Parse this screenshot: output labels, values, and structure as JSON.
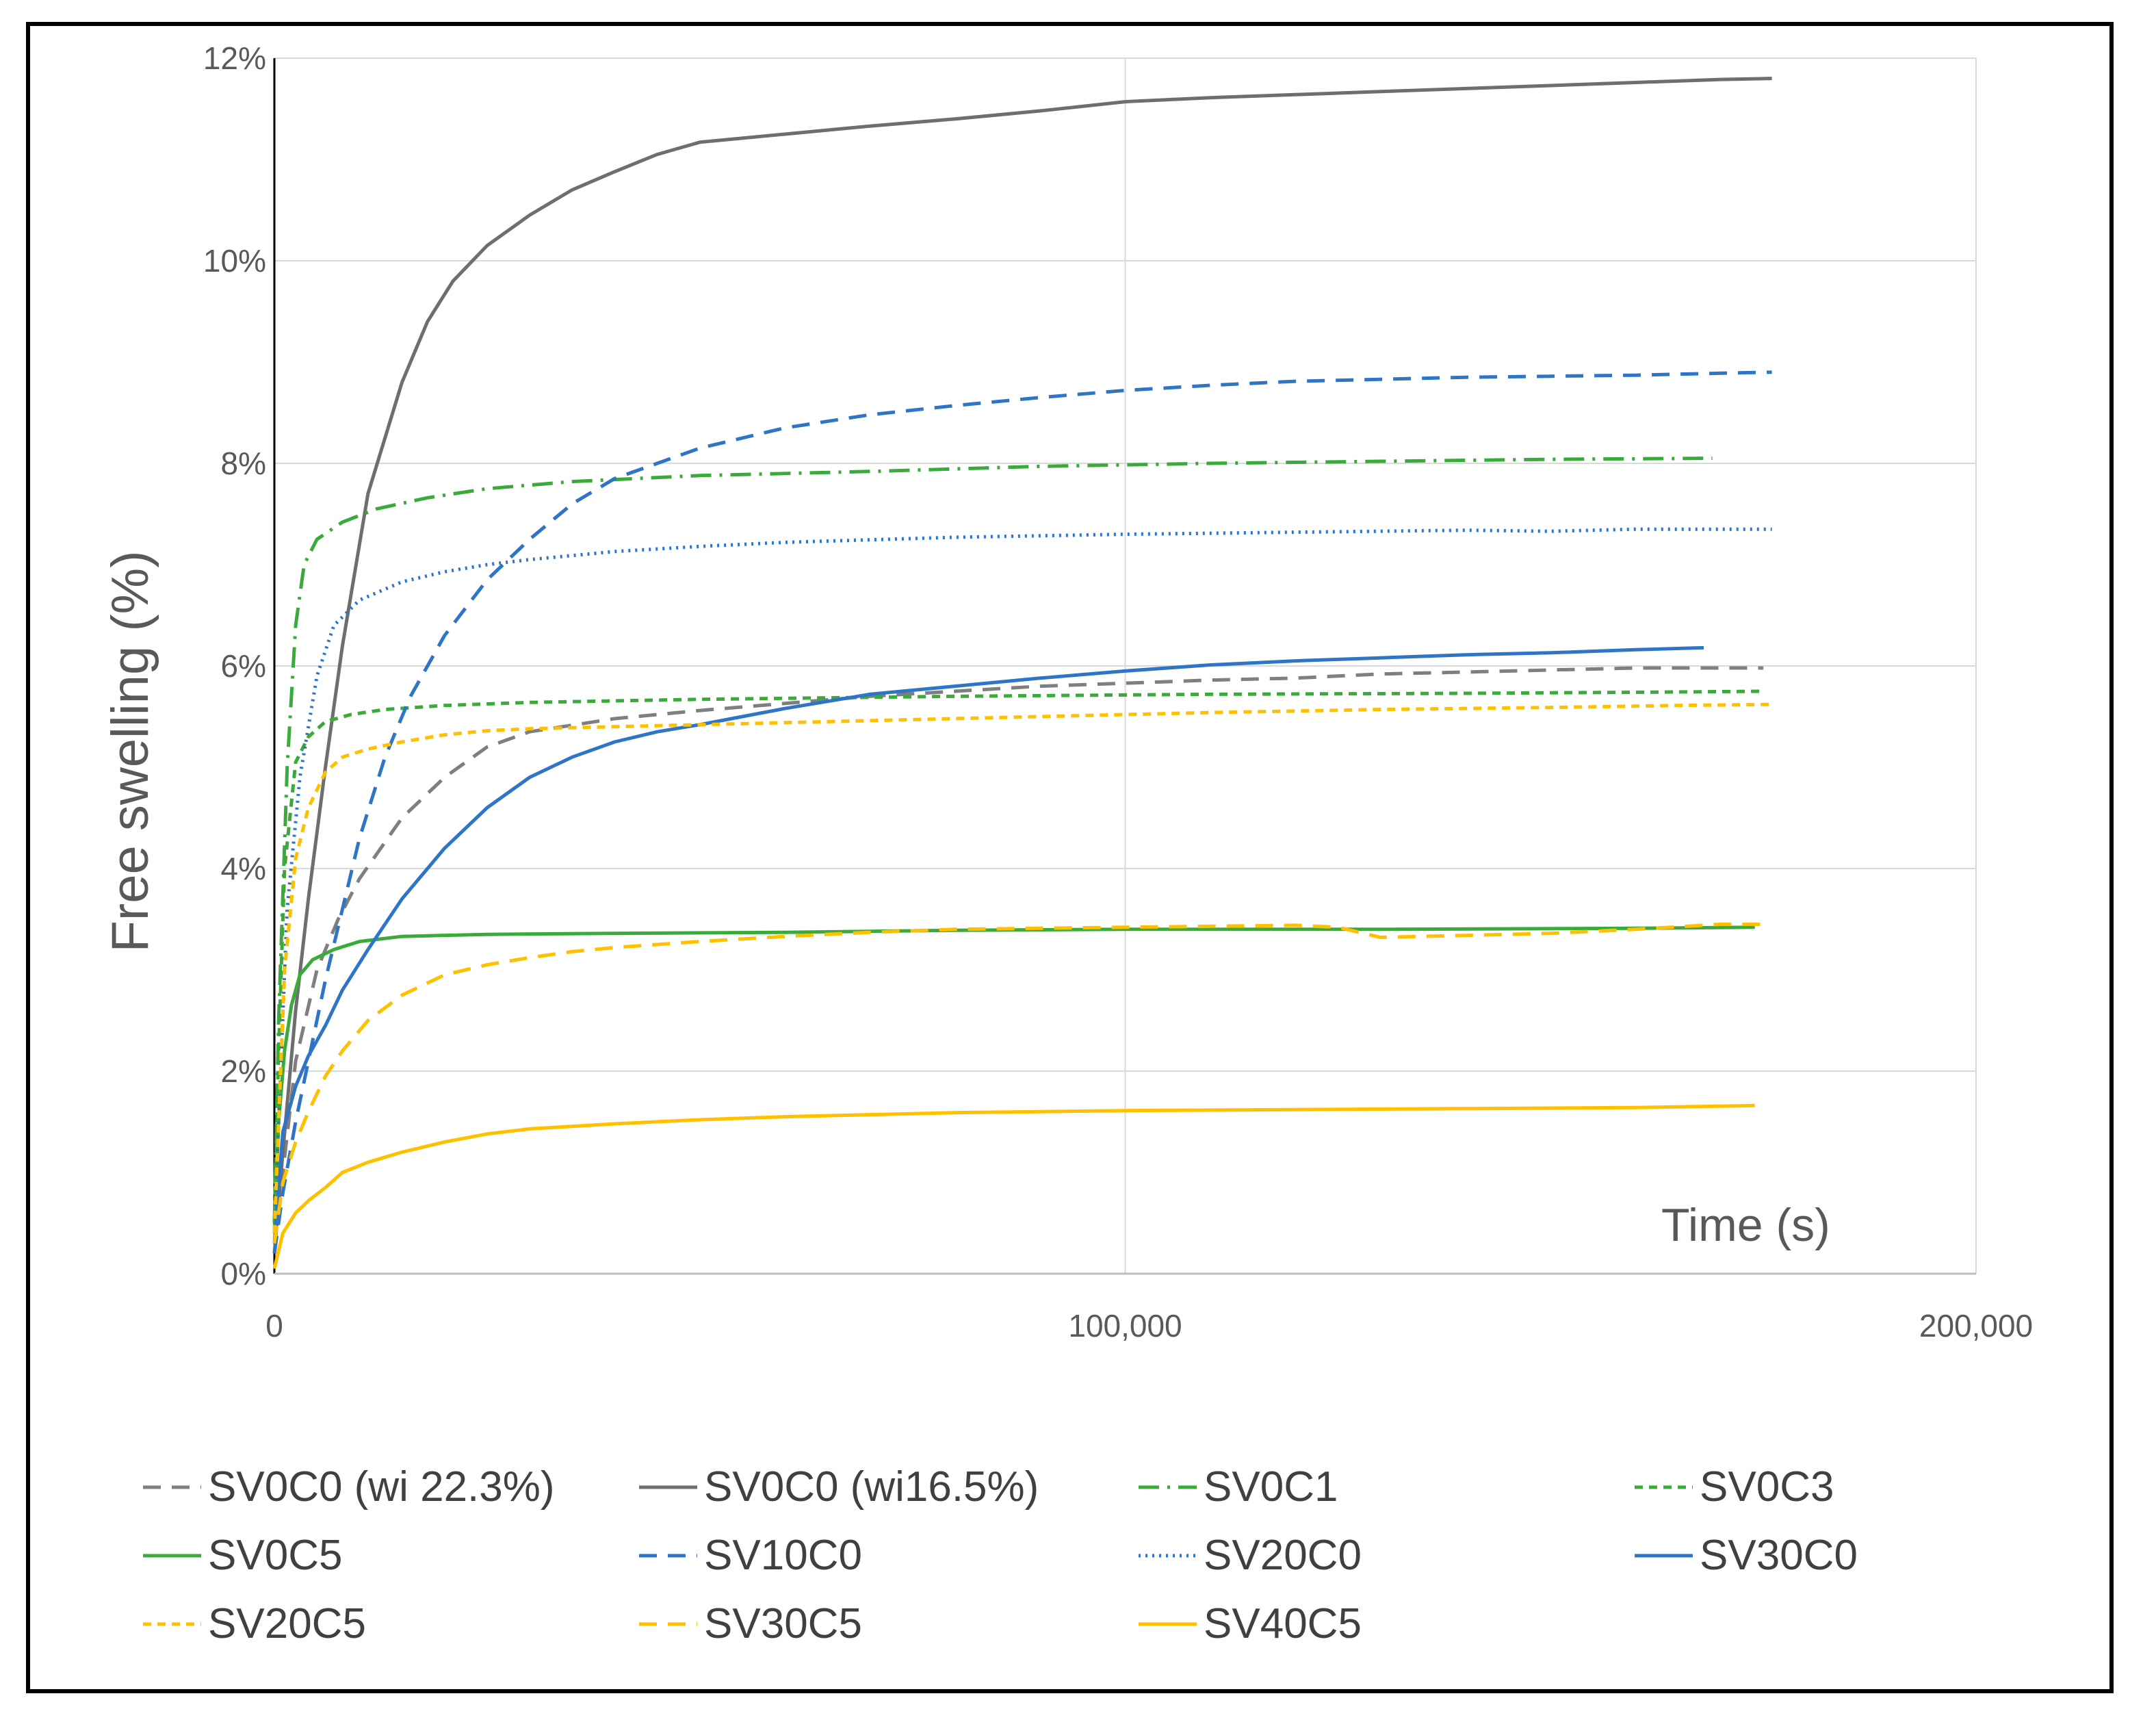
{
  "chart_data": {
    "type": "line",
    "ylabel": "Free swelling (%)",
    "xlabel": "Time (s)",
    "xlim": [
      0,
      200000
    ],
    "ylim": [
      0,
      12
    ],
    "x_ticks": [
      0,
      100000,
      200000
    ],
    "x_tick_labels": [
      "0",
      "100,000",
      "200,000"
    ],
    "y_ticks": [
      0,
      2,
      4,
      6,
      8,
      10,
      12
    ],
    "y_tick_labels": [
      "0%",
      "2%",
      "4%",
      "6%",
      "8%",
      "10%",
      "12%"
    ],
    "grid": true,
    "legend_position": "bottom",
    "series": [
      {
        "name": "SV0C0 (wi 22.3%)",
        "color": "#7f7f7f",
        "dash": "dash-long",
        "x": [
          0,
          1000,
          2500,
          5000,
          7500,
          10000,
          15000,
          20000,
          25000,
          30000,
          40000,
          50000,
          60000,
          70000,
          80000,
          90000,
          100000,
          110000,
          120000,
          130000,
          140000,
          150000,
          160000,
          170000,
          175000
        ],
        "y": [
          0.3,
          1.0,
          2.1,
          3.0,
          3.5,
          3.9,
          4.5,
          4.9,
          5.2,
          5.35,
          5.48,
          5.56,
          5.63,
          5.7,
          5.75,
          5.8,
          5.83,
          5.86,
          5.88,
          5.92,
          5.94,
          5.96,
          5.98,
          5.98,
          5.98
        ]
      },
      {
        "name": "SV0C0 (wi16.5%)",
        "color": "#6e6e6e",
        "dash": "solid",
        "x": [
          0,
          1000,
          2500,
          4000,
          6000,
          8000,
          11000,
          15000,
          18000,
          21000,
          25000,
          30000,
          35000,
          40000,
          45000,
          50000,
          60000,
          70000,
          80000,
          90000,
          100000,
          110000,
          120000,
          130000,
          140000,
          150000,
          160000,
          170000,
          176000
        ],
        "y": [
          0.2,
          1.2,
          2.6,
          3.7,
          5.0,
          6.2,
          7.7,
          8.8,
          9.4,
          9.8,
          10.15,
          10.45,
          10.7,
          10.88,
          11.05,
          11.17,
          11.25,
          11.33,
          11.4,
          11.48,
          11.57,
          11.61,
          11.64,
          11.67,
          11.7,
          11.73,
          11.76,
          11.79,
          11.8
        ]
      },
      {
        "name": "SV0C1",
        "color": "#3aab3a",
        "dash": "dash-dot",
        "x": [
          0,
          500,
          1500,
          2500,
          3500,
          5000,
          8000,
          12000,
          18000,
          25000,
          35000,
          50000,
          70000,
          90000,
          110000,
          130000,
          150000,
          169000
        ],
        "y": [
          0.5,
          2.5,
          5.0,
          6.4,
          7.0,
          7.25,
          7.42,
          7.55,
          7.66,
          7.75,
          7.82,
          7.88,
          7.92,
          7.97,
          8.0,
          8.02,
          8.04,
          8.05
        ]
      },
      {
        "name": "SV0C3",
        "color": "#3aab3a",
        "dash": "dash-short",
        "x": [
          0,
          500,
          1200,
          2500,
          4000,
          6000,
          9000,
          13000,
          20000,
          30000,
          50000,
          80000,
          110000,
          140000,
          160000,
          175000
        ],
        "y": [
          0.5,
          2.2,
          4.0,
          5.05,
          5.3,
          5.45,
          5.52,
          5.57,
          5.61,
          5.64,
          5.67,
          5.7,
          5.72,
          5.73,
          5.74,
          5.75
        ]
      },
      {
        "name": "SV0C5",
        "color": "#3aab3a",
        "dash": "solid",
        "x": [
          0,
          500,
          1200,
          2000,
          3000,
          4500,
          7000,
          10000,
          15000,
          25000,
          40000,
          60000,
          80000,
          100000,
          130000,
          160000,
          174000
        ],
        "y": [
          0.4,
          1.5,
          2.2,
          2.65,
          2.95,
          3.1,
          3.2,
          3.28,
          3.33,
          3.35,
          3.36,
          3.37,
          3.39,
          3.4,
          3.4,
          3.41,
          3.42
        ]
      },
      {
        "name": "SV10C0",
        "color": "#2e75c6",
        "dash": "dash-long",
        "x": [
          0,
          1000,
          2500,
          4000,
          6000,
          8000,
          10000,
          13000,
          16000,
          20000,
          25000,
          30000,
          35000,
          40000,
          45000,
          50000,
          60000,
          70000,
          80000,
          90000,
          100000,
          110000,
          120000,
          130000,
          140000,
          150000,
          160000,
          170000,
          176000
        ],
        "y": [
          0.2,
          0.8,
          1.5,
          2.1,
          2.9,
          3.6,
          4.3,
          5.1,
          5.7,
          6.3,
          6.85,
          7.25,
          7.6,
          7.85,
          8.0,
          8.15,
          8.35,
          8.48,
          8.57,
          8.65,
          8.72,
          8.77,
          8.81,
          8.83,
          8.85,
          8.86,
          8.87,
          8.89,
          8.9
        ]
      },
      {
        "name": "SV20C0",
        "color": "#2e75c6",
        "dash": "dotted",
        "x": [
          0,
          500,
          1500,
          3000,
          5000,
          7000,
          10000,
          15000,
          20000,
          25000,
          30000,
          40000,
          50000,
          60000,
          80000,
          100000,
          120000,
          140000,
          150000,
          160000,
          176000
        ],
        "y": [
          0.4,
          1.5,
          3.6,
          4.9,
          5.9,
          6.4,
          6.65,
          6.83,
          6.93,
          7.0,
          7.05,
          7.13,
          7.18,
          7.22,
          7.27,
          7.3,
          7.32,
          7.34,
          7.33,
          7.35,
          7.35
        ]
      },
      {
        "name": "SV30C0",
        "color": "#2e75c6",
        "dash": "solid",
        "x": [
          0,
          1000,
          2500,
          4000,
          6000,
          8000,
          11000,
          15000,
          20000,
          25000,
          30000,
          35000,
          40000,
          45000,
          50000,
          55000,
          60000,
          65000,
          70000,
          80000,
          90000,
          100000,
          110000,
          120000,
          130000,
          140000,
          150000,
          160000,
          168000
        ],
        "y": [
          0.3,
          1.4,
          1.85,
          2.15,
          2.45,
          2.8,
          3.2,
          3.7,
          4.2,
          4.6,
          4.9,
          5.1,
          5.25,
          5.35,
          5.42,
          5.5,
          5.58,
          5.65,
          5.72,
          5.8,
          5.88,
          5.95,
          6.01,
          6.05,
          6.08,
          6.11,
          6.13,
          6.16,
          6.18
        ]
      },
      {
        "name": "SV20C5",
        "color": "#ffc000",
        "dash": "dash-short",
        "x": [
          0,
          500,
          1200,
          2500,
          4000,
          6000,
          8000,
          11000,
          15000,
          20000,
          25000,
          30000,
          40000,
          50000,
          70000,
          90000,
          110000,
          130000,
          150000,
          165000,
          176000
        ],
        "y": [
          0.4,
          1.5,
          3.0,
          4.1,
          4.6,
          4.95,
          5.1,
          5.18,
          5.25,
          5.32,
          5.36,
          5.38,
          5.4,
          5.42,
          5.46,
          5.5,
          5.54,
          5.57,
          5.59,
          5.61,
          5.62
        ]
      },
      {
        "name": "SV30C5",
        "color": "#ffc000",
        "dash": "dash-long",
        "x": [
          0,
          1000,
          2500,
          4000,
          6000,
          8000,
          11000,
          15000,
          20000,
          25000,
          30000,
          35000,
          40000,
          50000,
          60000,
          70000,
          80000,
          90000,
          100000,
          110000,
          120000,
          125000,
          130000,
          140000,
          150000,
          160000,
          170000,
          175000
        ],
        "y": [
          0.3,
          0.9,
          1.3,
          1.6,
          1.95,
          2.2,
          2.5,
          2.75,
          2.95,
          3.05,
          3.12,
          3.18,
          3.22,
          3.28,
          3.33,
          3.37,
          3.4,
          3.41,
          3.42,
          3.43,
          3.44,
          3.42,
          3.32,
          3.34,
          3.36,
          3.4,
          3.45,
          3.45
        ]
      },
      {
        "name": "SV40C5",
        "color": "#ffc000",
        "dash": "solid",
        "x": [
          0,
          1000,
          2500,
          4000,
          6000,
          8000,
          11000,
          15000,
          20000,
          25000,
          30000,
          40000,
          50000,
          60000,
          70000,
          80000,
          90000,
          100000,
          120000,
          140000,
          160000,
          174000
        ],
        "y": [
          0.05,
          0.4,
          0.6,
          0.72,
          0.85,
          1.0,
          1.1,
          1.2,
          1.3,
          1.38,
          1.43,
          1.48,
          1.52,
          1.55,
          1.57,
          1.59,
          1.6,
          1.61,
          1.62,
          1.63,
          1.64,
          1.66
        ]
      }
    ]
  }
}
